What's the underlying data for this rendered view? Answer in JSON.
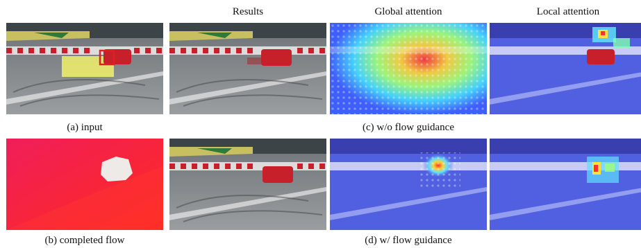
{
  "headers": {
    "results": "Results",
    "global": "Global attention",
    "local": "Local attention"
  },
  "captions": {
    "a": "(a) input",
    "b": "(b) completed flow",
    "c": "(c) w/o flow guidance",
    "d": "(d) w/ flow guidance"
  },
  "colors": {
    "flow_background": "#f0244f",
    "mask_highlight": "#ffff66",
    "target_box": "#e02020",
    "car_red": "#c8202a"
  }
}
